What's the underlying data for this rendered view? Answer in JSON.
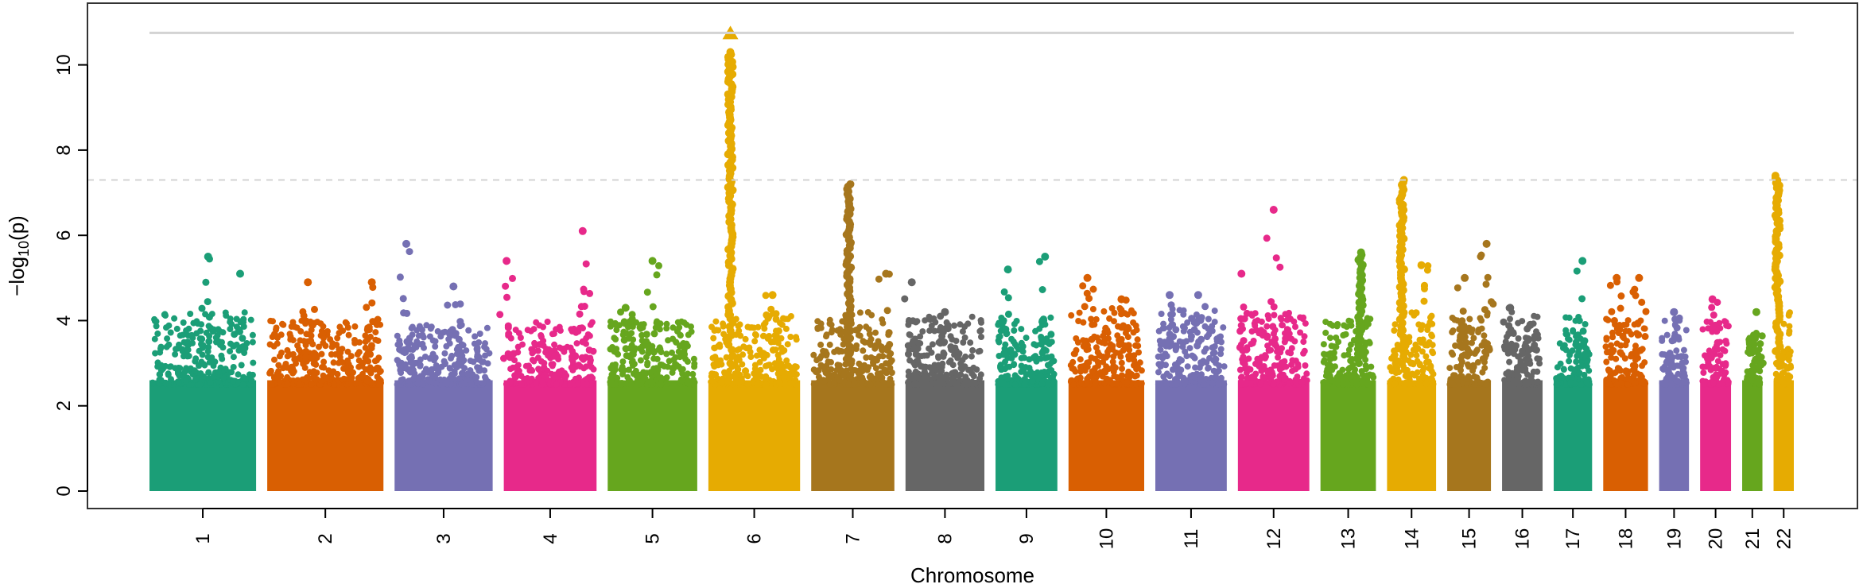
{
  "chart_data": {
    "type": "scatter",
    "subtype": "manhattan",
    "title": "",
    "xlabel": "Chromosome",
    "ylabel_prefix": "−log",
    "ylabel_subscript": "10",
    "ylabel_suffix": "(p)",
    "ylim": [
      0,
      11
    ],
    "yticks": [
      "0",
      "2",
      "4",
      "6",
      "8",
      "10"
    ],
    "ytick_values": [
      0,
      2,
      4,
      6,
      8,
      10
    ],
    "genome_wide_threshold": 7.3,
    "max_value_line": 10.75,
    "palette": [
      "#1B9E77",
      "#D95F02",
      "#7570B3",
      "#E7298A",
      "#66A61E",
      "#E6AB02",
      "#A6761D",
      "#666666"
    ],
    "threshold_color": "#d3d3d3",
    "chromosomes": [
      {
        "label": "1",
        "rel_len": 1.0,
        "baseline": 3.3,
        "peaks": [
          {
            "pos": 0.55,
            "value": 5.5
          },
          {
            "pos": 0.85,
            "value": 5.1
          }
        ]
      },
      {
        "label": "2",
        "rel_len": 1.09,
        "baseline": 3.1,
        "peaks": [
          {
            "pos": 0.35,
            "value": 4.9
          },
          {
            "pos": 0.9,
            "value": 4.9
          }
        ]
      },
      {
        "label": "3",
        "rel_len": 0.92,
        "baseline": 3.0,
        "peaks": [
          {
            "pos": 0.12,
            "value": 5.8
          },
          {
            "pos": 0.6,
            "value": 4.8
          }
        ]
      },
      {
        "label": "4",
        "rel_len": 0.87,
        "baseline": 3.1,
        "peaks": [
          {
            "pos": 0.03,
            "value": 5.4
          },
          {
            "pos": 0.85,
            "value": 6.1
          }
        ]
      },
      {
        "label": "5",
        "rel_len": 0.84,
        "baseline": 3.1,
        "peaks": [
          {
            "pos": 0.5,
            "value": 5.4
          },
          {
            "pos": 0.2,
            "value": 4.3
          }
        ]
      },
      {
        "label": "6",
        "rel_len": 0.86,
        "baseline": 3.3,
        "peaks": [
          {
            "pos": 0.24,
            "value": 10.3,
            "tower": true
          },
          {
            "pos": 0.7,
            "value": 4.6
          }
        ]
      },
      {
        "label": "7",
        "rel_len": 0.78,
        "baseline": 3.3,
        "peaks": [
          {
            "pos": 0.45,
            "value": 7.2,
            "tower": true
          },
          {
            "pos": 0.9,
            "value": 5.1
          }
        ]
      },
      {
        "label": "8",
        "rel_len": 0.74,
        "baseline": 3.2,
        "peaks": [
          {
            "pos": 0.08,
            "value": 4.9
          },
          {
            "pos": 0.5,
            "value": 4.2
          }
        ]
      },
      {
        "label": "9",
        "rel_len": 0.58,
        "baseline": 3.2,
        "peaks": [
          {
            "pos": 0.2,
            "value": 5.2
          },
          {
            "pos": 0.8,
            "value": 5.5
          }
        ]
      },
      {
        "label": "10",
        "rel_len": 0.71,
        "baseline": 3.4,
        "peaks": [
          {
            "pos": 0.25,
            "value": 5.0
          },
          {
            "pos": 0.7,
            "value": 4.5
          }
        ]
      },
      {
        "label": "11",
        "rel_len": 0.67,
        "baseline": 3.4,
        "peaks": [
          {
            "pos": 0.2,
            "value": 4.6
          },
          {
            "pos": 0.6,
            "value": 4.6
          }
        ]
      },
      {
        "label": "12",
        "rel_len": 0.67,
        "baseline": 3.3,
        "peaks": [
          {
            "pos": 0.5,
            "value": 6.6
          },
          {
            "pos": 0.05,
            "value": 5.1
          }
        ]
      },
      {
        "label": "13",
        "rel_len": 0.52,
        "baseline": 3.2,
        "peaks": [
          {
            "pos": 0.72,
            "value": 5.6,
            "tower": true
          }
        ]
      },
      {
        "label": "14",
        "rel_len": 0.46,
        "baseline": 3.3,
        "peaks": [
          {
            "pos": 0.3,
            "value": 7.3,
            "tower": true
          },
          {
            "pos": 0.7,
            "value": 5.3
          }
        ]
      },
      {
        "label": "15",
        "rel_len": 0.41,
        "baseline": 3.3,
        "peaks": [
          {
            "pos": 0.4,
            "value": 5.0
          },
          {
            "pos": 0.9,
            "value": 5.8
          }
        ]
      },
      {
        "label": "16",
        "rel_len": 0.38,
        "baseline": 3.3,
        "peaks": [
          {
            "pos": 0.2,
            "value": 4.3
          },
          {
            "pos": 0.7,
            "value": 3.9
          }
        ]
      },
      {
        "label": "17",
        "rel_len": 0.36,
        "baseline": 3.2,
        "peaks": [
          {
            "pos": 0.75,
            "value": 5.4
          }
        ]
      },
      {
        "label": "18",
        "rel_len": 0.42,
        "baseline": 3.2,
        "peaks": [
          {
            "pos": 0.3,
            "value": 5.0
          },
          {
            "pos": 0.8,
            "value": 5.0
          }
        ]
      },
      {
        "label": "19",
        "rel_len": 0.28,
        "baseline": 3.1,
        "peaks": [
          {
            "pos": 0.5,
            "value": 4.2
          }
        ]
      },
      {
        "label": "20",
        "rel_len": 0.29,
        "baseline": 3.1,
        "peaks": [
          {
            "pos": 0.4,
            "value": 4.5
          }
        ]
      },
      {
        "label": "21",
        "rel_len": 0.19,
        "baseline": 2.9,
        "peaks": [
          {
            "pos": 0.7,
            "value": 4.2
          }
        ]
      },
      {
        "label": "22",
        "rel_len": 0.19,
        "baseline": 3.3,
        "peaks": [
          {
            "pos": 0.2,
            "value": 7.4,
            "tower": true
          }
        ]
      }
    ],
    "top_hit": {
      "chromosome": "6",
      "value": 10.75,
      "marker": "triangle"
    }
  }
}
